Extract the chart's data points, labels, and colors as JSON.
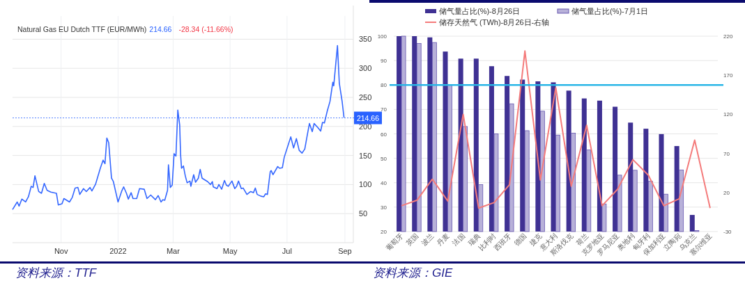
{
  "chart_data": [
    {
      "type": "line",
      "title": "Natural Gas EU Dutch TTF (EUR/MWh)",
      "annotations": [
        "214.66",
        "-28.34 (-11.66%)",
        "资料来源：TTF"
      ],
      "x": [
        "2021-09-10",
        "2021-09-15",
        "2021-09-17",
        "2021-09-20",
        "2021-09-24",
        "2021-09-27",
        "2021-09-30",
        "2021-10-02",
        "2021-10-04",
        "2021-10-08",
        "2021-10-11",
        "2021-10-14",
        "2021-10-17",
        "2021-10-21",
        "2021-10-27",
        "2021-10-29",
        "2021-11-02",
        "2021-11-04",
        "2021-11-10",
        "2021-11-13",
        "2021-11-16",
        "2021-11-19",
        "2021-11-21",
        "2021-11-25",
        "2021-11-28",
        "2021-12-02",
        "2021-12-04",
        "2021-12-08",
        "2021-12-13",
        "2021-12-16",
        "2021-12-18",
        "2021-12-20",
        "2021-12-22",
        "2021-12-25",
        "2021-12-27",
        "2022-01-01",
        "2022-01-05",
        "2022-01-07",
        "2022-01-10",
        "2022-01-12",
        "2022-01-15",
        "2022-01-17",
        "2022-01-21",
        "2022-01-24",
        "2022-01-29",
        "2022-02-01",
        "2022-02-05",
        "2022-02-10",
        "2022-02-13",
        "2022-02-16",
        "2022-02-18",
        "2022-02-20",
        "2022-02-23",
        "2022-02-24",
        "2022-02-26",
        "2022-02-28",
        "2022-03-02",
        "2022-03-04",
        "2022-03-06",
        "2022-03-08",
        "2022-03-09",
        "2022-03-10",
        "2022-03-12",
        "2022-03-14",
        "2022-03-16",
        "2022-03-19",
        "2022-03-20",
        "2022-03-23",
        "2022-03-25",
        "2022-03-28",
        "2022-03-30",
        "2022-04-01",
        "2022-04-07",
        "2022-04-10",
        "2022-04-12",
        "2022-04-13",
        "2022-04-17",
        "2022-04-19",
        "2022-04-22",
        "2022-04-25",
        "2022-04-27",
        "2022-04-29",
        "2022-05-03",
        "2022-05-06",
        "2022-05-08",
        "2022-05-10",
        "2022-05-13",
        "2022-05-15",
        "2022-05-19",
        "2022-05-23",
        "2022-05-26",
        "2022-05-28",
        "2022-05-30",
        "2022-06-03",
        "2022-06-06",
        "2022-06-08",
        "2022-06-10",
        "2022-06-13",
        "2022-06-14",
        "2022-06-16",
        "2022-06-21",
        "2022-06-23",
        "2022-06-26",
        "2022-06-28",
        "2022-07-01",
        "2022-07-05",
        "2022-07-08",
        "2022-07-11",
        "2022-07-14",
        "2022-07-17",
        "2022-07-20",
        "2022-07-23",
        "2022-07-25",
        "2022-07-28",
        "2022-07-30",
        "2022-08-03",
        "2022-08-06",
        "2022-08-08",
        "2022-08-10",
        "2022-08-13",
        "2022-08-16",
        "2022-08-19",
        "2022-08-20",
        "2022-08-24",
        "2022-08-26",
        "2022-08-29",
        "2022-08-31"
      ],
      "series": [
        {
          "color": "#3366ff",
          "values": [
            57,
            70,
            63,
            75,
            70,
            79,
            97,
            95,
            115,
            88,
            85,
            102,
            90,
            87,
            85,
            65,
            67,
            76,
            70,
            78,
            94,
            95,
            83,
            93,
            88,
            95,
            89,
            101,
            128,
            142,
            136,
            180,
            172,
            111,
            105,
            70,
            89,
            96,
            85,
            75,
            86,
            76,
            76,
            93,
            92,
            76,
            82,
            74,
            81,
            70,
            74,
            73,
            90,
            134,
            95,
            99,
            153,
            149,
            228,
            203,
            151,
            128,
            132,
            115,
            103,
            106,
            97,
            117,
            104,
            111,
            126,
            111,
            105,
            100,
            105,
            96,
            93,
            100,
            92,
            107,
            99,
            97,
            106,
            93,
            97,
            106,
            93,
            94,
            83,
            88,
            86,
            94,
            83,
            80,
            79,
            84,
            83,
            122,
            124,
            117,
            131,
            128,
            129,
            147,
            162,
            182,
            163,
            179,
            159,
            154,
            161,
            188,
            205,
            191,
            205,
            198,
            192,
            207,
            206,
            226,
            243,
            276,
            270,
            339,
            274,
            243,
            215
          ]
        }
      ],
      "xlim": [
        "2021-09-10",
        "2022-09-10"
      ],
      "xticks": [
        {
          "value": "2021-11-01",
          "label": "Nov"
        },
        {
          "value": "2022-01-01",
          "label": "2022"
        },
        {
          "value": "2022-03-01",
          "label": "Mar"
        },
        {
          "value": "2022-05-01",
          "label": "May"
        },
        {
          "value": "2022-07-01",
          "label": "Jul"
        },
        {
          "value": "2022-09-01",
          "label": "Sep"
        }
      ],
      "ylim": [
        0,
        390
      ],
      "yticks": [
        50,
        100,
        150,
        200,
        250,
        300,
        350
      ],
      "grid": true,
      "legend": false,
      "marker": "none",
      "ref_lines": [
        {
          "axis": "y",
          "value": 214.66,
          "label": "214.66",
          "color": "#2962ff",
          "line_style": "dashed"
        }
      ]
    },
    {
      "type": "bar",
      "categories": [
        "葡萄牙",
        "英国",
        "波兰",
        "丹麦",
        "法国",
        "瑞典",
        "比利时",
        "西班牙",
        "德国",
        "捷克",
        "意大利",
        "斯洛伐克",
        "荷兰",
        "克罗地亚",
        "罗马尼亚",
        "奥地利",
        "匈牙利",
        "保加利亚",
        "立陶宛",
        "乌克兰",
        "塞尔维亚"
      ],
      "series": [
        {
          "name": "储气量占比(%)-8月26日",
          "color": "#3f3193",
          "values": [
            100,
            100,
            99.5,
            93.7,
            90.8,
            90.8,
            87.7,
            83.7,
            82.2,
            81.5,
            81.1,
            77.7,
            74.5,
            73.6,
            71.1,
            64.6,
            62.1,
            59.9,
            55.0,
            26.8,
            null
          ]
        },
        {
          "name": "储气量占比(%)-7月1日",
          "color": "#b8b1d9",
          "values": [
            100,
            97,
            97.4,
            80,
            63,
            39.2,
            60,
            72.3,
            61.3,
            69.3,
            59.5,
            60.3,
            53.4,
            31.3,
            43.1,
            45.1,
            40.6,
            35.3,
            45.2,
            20.4,
            null
          ]
        },
        {
          "name": "储存天然气 (TWh)-8月26日-右轴",
          "type": "line",
          "axis": "y2",
          "color": "#f47b7b",
          "values": [
            3,
            10,
            37,
            9,
            120,
            0,
            7,
            30,
            201,
            36,
            154,
            28,
            106,
            3,
            24,
            62,
            42,
            3,
            12,
            87,
            0
          ]
        }
      ],
      "ylim": [
        20,
        100
      ],
      "yticks": [
        20,
        30,
        40,
        50,
        60,
        70,
        80,
        90,
        100
      ],
      "y2lim": [
        -30,
        220
      ],
      "y2ticks": [
        -30,
        20,
        70,
        120,
        170,
        220
      ],
      "grid": "y",
      "legend": "top",
      "ref_lines": [
        {
          "axis": "y",
          "value": 80,
          "color": "#29b6e6"
        }
      ],
      "annotations": [
        "资料来源：GIE"
      ]
    }
  ]
}
